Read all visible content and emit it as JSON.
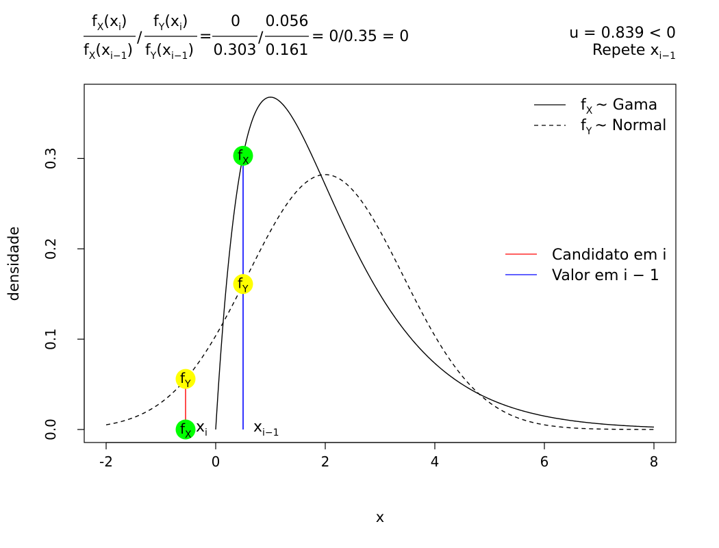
{
  "chart_data": {
    "type": "line",
    "xlabel": "x",
    "ylabel": "densidade",
    "xlim": [
      -2,
      8
    ],
    "ylim": [
      0,
      0.37
    ],
    "x_ticks": [
      -2,
      0,
      2,
      4,
      6,
      8
    ],
    "x_tick_labels": [
      "-2",
      "0",
      "2",
      "4",
      "6",
      "8"
    ],
    "y_ticks": [
      0.0,
      0.1,
      0.2,
      0.3
    ],
    "y_tick_labels": [
      "0.0",
      "0.1",
      "0.2",
      "0.3"
    ],
    "series": [
      {
        "name": "Gama",
        "style": "solid",
        "color": "#000000",
        "distribution": "gamma",
        "shape": 2,
        "rate": 1,
        "x_range": [
          0,
          8
        ]
      },
      {
        "name": "Normal",
        "style": "dashed",
        "color": "#000000",
        "distribution": "normal",
        "mean": 2,
        "sd": 1.414,
        "x_range": [
          -2,
          8
        ]
      }
    ],
    "legend_top": {
      "position": "top-right",
      "entries": [
        {
          "f": "f",
          "sub": "X",
          "text": "~ Gama",
          "style": "solid"
        },
        {
          "f": "f",
          "sub": "Y",
          "text": "~ Normal",
          "style": "dashed"
        }
      ]
    },
    "legend_mid": {
      "position": "right",
      "entries": [
        {
          "label": "Candidato em i",
          "color": "#ff0000"
        },
        {
          "label": "Valor em i − 1",
          "color": "#0000ff"
        }
      ]
    },
    "candidate": {
      "x": -0.55,
      "fX": 0.0,
      "fY": 0.056,
      "color": "#ff0000",
      "label": "x",
      "label_sub": "i"
    },
    "previous": {
      "x": 0.5,
      "fX": 0.303,
      "fY": 0.161,
      "color": "#0000ff",
      "label": "x",
      "label_sub": "i−1"
    },
    "markers": [
      {
        "x": -0.55,
        "y": 0.0,
        "color": "#00ff00",
        "sub": "X"
      },
      {
        "x": -0.55,
        "y": 0.056,
        "color": "#ffff00",
        "sub": "Y"
      },
      {
        "x": 0.5,
        "y": 0.303,
        "color": "#00ff00",
        "sub": "X"
      },
      {
        "x": 0.5,
        "y": 0.161,
        "color": "#ffff00",
        "sub": "Y"
      }
    ],
    "marker_letter": "f",
    "formula": {
      "f": "f",
      "xsym": "x",
      "sub_x": "X",
      "sub_y": "Y",
      "sub_i": "i",
      "sub_prev": "i−1",
      "num_value": "0",
      "den_value": "0.303",
      "num2_value": "0.056",
      "den2_value": "0.161",
      "slash": "/",
      "equals": "=",
      "result_text": "= 0/0.35 = 0"
    },
    "annotation": {
      "line1": "u =  0.839 < 0",
      "line2_text": "Repete x",
      "line2_sub": "i−1"
    }
  }
}
